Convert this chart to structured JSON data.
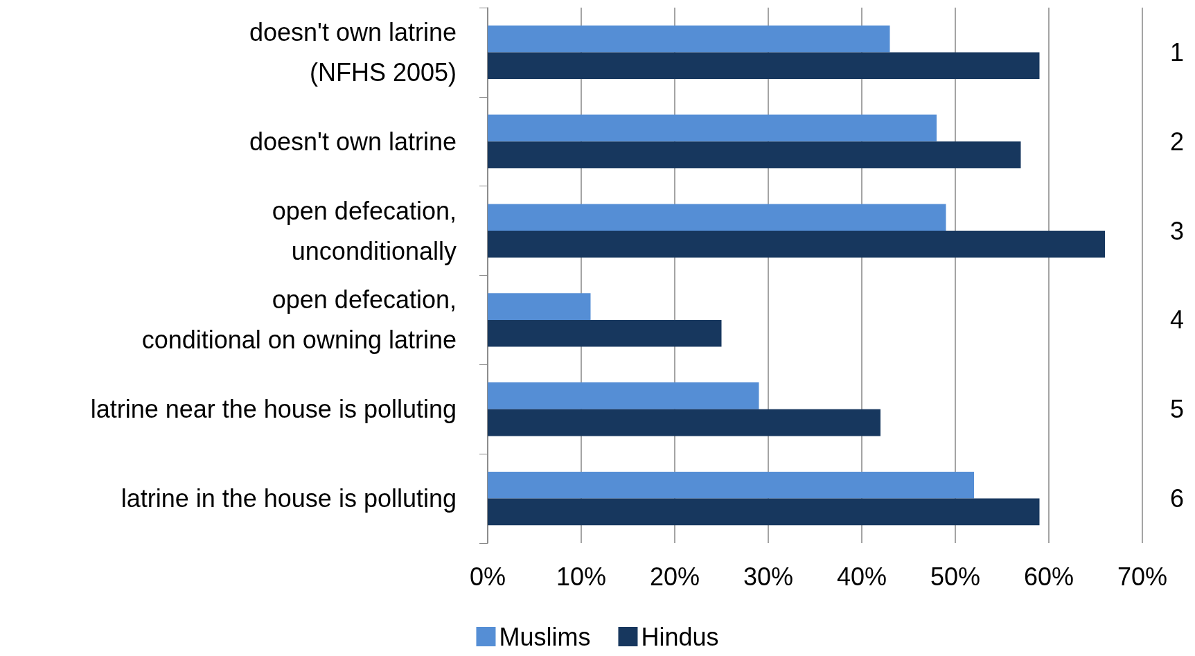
{
  "chart_data": {
    "type": "bar",
    "orientation": "horizontal",
    "categories": [
      "doesn't own latrine\n(NFHS 2005)",
      "doesn't own latrine",
      "open defecation,\nunconditionally",
      "open defecation,\nconditional on owning latrine",
      "latrine near the house is polluting",
      "latrine in the house is polluting"
    ],
    "series": [
      {
        "name": "Muslims",
        "color": "#558ed5",
        "values": [
          43,
          48,
          49,
          11,
          29,
          52
        ]
      },
      {
        "name": "Hindus",
        "color": "#17375e",
        "values": [
          59,
          57,
          66,
          25,
          42,
          59
        ]
      }
    ],
    "xlim": [
      0,
      70
    ],
    "xticks": [
      {
        "value": 0,
        "label": "0%"
      },
      {
        "value": 10,
        "label": "10%"
      },
      {
        "value": 20,
        "label": "20%"
      },
      {
        "value": 30,
        "label": "30%"
      },
      {
        "value": 40,
        "label": "40%"
      },
      {
        "value": 50,
        "label": "50%"
      },
      {
        "value": 60,
        "label": "60%"
      },
      {
        "value": 70,
        "label": "70%"
      }
    ],
    "annotations": [
      "1",
      "2",
      "3",
      "4",
      "5",
      "6"
    ],
    "grid": "x",
    "legend": "bottom"
  }
}
